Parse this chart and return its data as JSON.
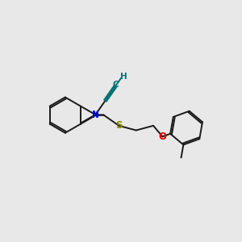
{
  "background_color": "#e8e8e8",
  "bond_color": "#1a1a1a",
  "N_color": "#0000ee",
  "S_color": "#888800",
  "O_color": "#dd0000",
  "alkyne_color": "#007070",
  "figsize": [
    3.0,
    3.0
  ],
  "dpi": 100,
  "lw": 1.4,
  "xlim": [
    0,
    10
  ],
  "ylim": [
    0,
    10
  ]
}
